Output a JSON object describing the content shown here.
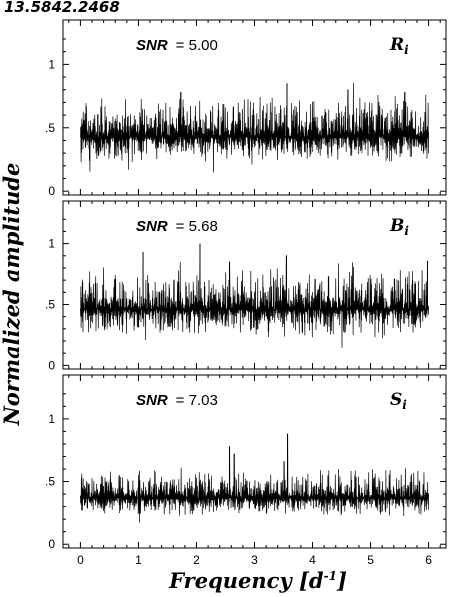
{
  "figure": {
    "title": "13.5842.2468",
    "ylabel": "Normalized amplitude",
    "xlabel": "Frequency [d",
    "xlabel_exponent": "-1",
    "xlabel_close": "]"
  },
  "chart_data": [
    {
      "type": "line",
      "band": "R",
      "band_sub": "i",
      "snr_label": "SNR",
      "snr_value": "= 5.00",
      "xlim": [
        -0.3,
        6.3
      ],
      "ylim": [
        -0.03,
        1.35
      ],
      "xticks": [
        0,
        1,
        2,
        3,
        4,
        5,
        6
      ],
      "yticks": [
        {
          "v": 0,
          "label": "0"
        },
        {
          "v": 0.5,
          "label": ".5"
        },
        {
          "v": 1,
          "label": "1"
        }
      ],
      "noise": {
        "x_start": 0.0,
        "x_end": 6.0,
        "mean": 0.43,
        "typical_min": 0.22,
        "typical_max": 0.78,
        "color": "#000000"
      },
      "peaks": [
        {
          "x": 3.56,
          "y": 0.85
        },
        {
          "x": 4.61,
          "y": 0.8
        },
        {
          "x": 1.73,
          "y": 0.78
        },
        {
          "x": 5.59,
          "y": 0.78
        }
      ]
    },
    {
      "type": "line",
      "band": "B",
      "band_sub": "i",
      "snr_label": "SNR",
      "snr_value": "= 5.68",
      "xlim": [
        -0.3,
        6.3
      ],
      "ylim": [
        -0.03,
        1.35
      ],
      "xticks": [
        0,
        1,
        2,
        3,
        4,
        5,
        6
      ],
      "yticks": [
        {
          "v": 0,
          "label": "0"
        },
        {
          "v": 0.5,
          "label": ".5"
        },
        {
          "v": 1,
          "label": "1"
        }
      ],
      "noise": {
        "x_start": 0.0,
        "x_end": 6.0,
        "mean": 0.46,
        "typical_min": 0.22,
        "typical_max": 0.82,
        "color": "#000000"
      },
      "peaks": [
        {
          "x": 2.06,
          "y": 1.0
        },
        {
          "x": 1.08,
          "y": 0.93
        },
        {
          "x": 3.55,
          "y": 0.9
        },
        {
          "x": 5.98,
          "y": 0.86
        },
        {
          "x": 2.57,
          "y": 0.85
        }
      ]
    },
    {
      "type": "line",
      "band": "S",
      "band_sub": "i",
      "snr_label": "SNR",
      "snr_value": "= 7.03",
      "xlim": [
        -0.3,
        6.3
      ],
      "ylim": [
        -0.03,
        1.35
      ],
      "xticks": [
        0,
        1,
        2,
        3,
        4,
        5,
        6
      ],
      "xticklabels": [
        "0",
        "1",
        "2",
        "3",
        "4",
        "5",
        "6"
      ],
      "yticks": [
        {
          "v": 0,
          "label": "0"
        },
        {
          "v": 0.5,
          "label": ".5"
        },
        {
          "v": 1,
          "label": "1"
        }
      ],
      "noise": {
        "x_start": 0.0,
        "x_end": 6.0,
        "mean": 0.37,
        "typical_min": 0.22,
        "typical_max": 0.62,
        "color": "#000000"
      },
      "peaks": [
        {
          "x": 3.57,
          "y": 0.88
        },
        {
          "x": 2.57,
          "y": 0.78
        },
        {
          "x": 2.65,
          "y": 0.72
        },
        {
          "x": 3.51,
          "y": 0.66
        }
      ]
    }
  ]
}
